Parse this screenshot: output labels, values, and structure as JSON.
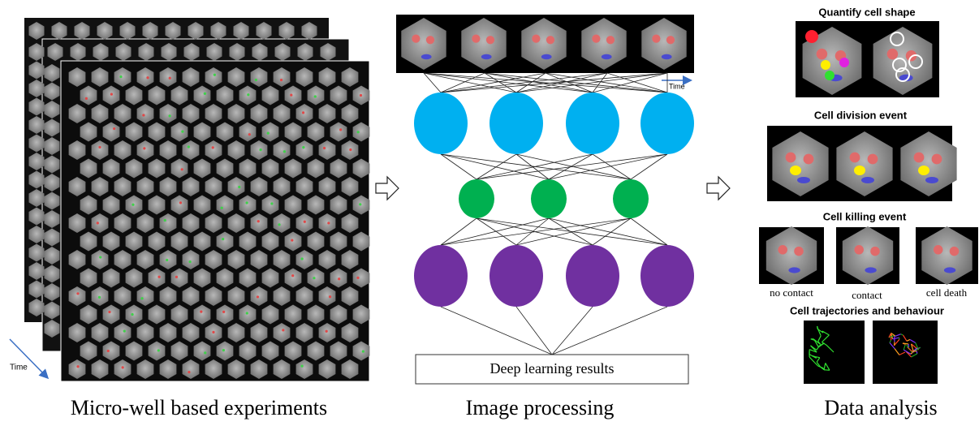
{
  "panels": {
    "experiments": {
      "time_label": "Time",
      "caption": "Micro-well based experiments"
    },
    "processing": {
      "time_label": "Time",
      "result_box": "Deep learning results",
      "caption": "Image processing"
    },
    "analysis": {
      "shape_title": "Quantify cell shape",
      "division_title": "Cell division event",
      "killing_title": "Cell killing event",
      "killing_labels": [
        "no contact",
        "contact",
        "cell death"
      ],
      "trajectory_title": "Cell trajectories and behaviour",
      "caption": "Data analysis"
    }
  }
}
